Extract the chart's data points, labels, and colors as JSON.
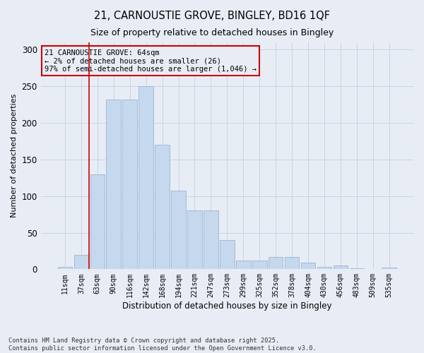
{
  "title": "21, CARNOUSTIE GROVE, BINGLEY, BD16 1QF",
  "subtitle": "Size of property relative to detached houses in Bingley",
  "xlabel": "Distribution of detached houses by size in Bingley",
  "ylabel": "Number of detached properties",
  "bar_labels": [
    "11sqm",
    "37sqm",
    "63sqm",
    "90sqm",
    "116sqm",
    "142sqm",
    "168sqm",
    "194sqm",
    "221sqm",
    "247sqm",
    "273sqm",
    "299sqm",
    "325sqm",
    "352sqm",
    "378sqm",
    "404sqm",
    "430sqm",
    "456sqm",
    "483sqm",
    "509sqm",
    "535sqm"
  ],
  "bar_values": [
    3,
    20,
    130,
    232,
    232,
    250,
    170,
    107,
    80,
    80,
    40,
    12,
    12,
    17,
    17,
    9,
    3,
    5,
    1,
    0,
    2
  ],
  "bar_color": "#c5d8ee",
  "bar_edgecolor": "#9ab5d5",
  "grid_color": "#c8d4e8",
  "bg_color": "#e8edf5",
  "vline_color": "#cc0000",
  "vline_x_index": 2,
  "annotation_text": "21 CARNOUSTIE GROVE: 64sqm\n← 2% of detached houses are smaller (26)\n97% of semi-detached houses are larger (1,046) →",
  "annotation_box_color": "#cc0000",
  "footer": "Contains HM Land Registry data © Crown copyright and database right 2025.\nContains public sector information licensed under the Open Government Licence v3.0.",
  "ylim": [
    0,
    310
  ],
  "yticks": [
    0,
    50,
    100,
    150,
    200,
    250,
    300
  ]
}
